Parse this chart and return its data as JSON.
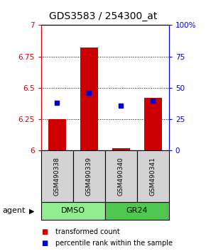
{
  "title": "GDS3583 / 254300_at",
  "samples": [
    "GSM490338",
    "GSM490339",
    "GSM490340",
    "GSM490341"
  ],
  "bar_values": [
    6.25,
    6.82,
    6.02,
    6.42
  ],
  "percentile_values": [
    6.38,
    6.46,
    6.36,
    6.4
  ],
  "ylim_left": [
    6.0,
    7.0
  ],
  "ylim_right": [
    0,
    100
  ],
  "yticks_left": [
    6.0,
    6.25,
    6.5,
    6.75,
    7.0
  ],
  "yticks_right": [
    0,
    25,
    50,
    75,
    100
  ],
  "yticklabels_left": [
    "6",
    "6.25",
    "6.5",
    "6.75",
    "7"
  ],
  "yticklabels_right": [
    "0",
    "25",
    "50",
    "75",
    "100%"
  ],
  "bar_color": "#cc0000",
  "percentile_color": "#0000cc",
  "bar_bottom": 6.0,
  "groups": [
    {
      "label": "DMSO",
      "samples": [
        0,
        1
      ],
      "color": "#90ee90"
    },
    {
      "label": "GR24",
      "samples": [
        2,
        3
      ],
      "color": "#50c850"
    }
  ],
  "legend_bar_label": "transformed count",
  "legend_pct_label": "percentile rank within the sample",
  "agent_label": "agent",
  "title_fontsize": 10,
  "tick_fontsize": 7.5,
  "sample_fontsize": 6.5,
  "group_fontsize": 8,
  "legend_fontsize": 7
}
